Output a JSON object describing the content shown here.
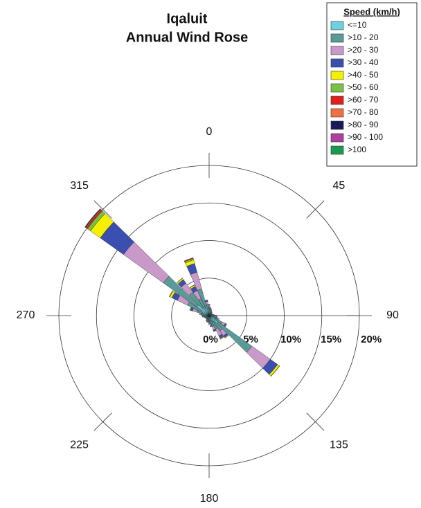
{
  "chart_data": {
    "type": "windrose",
    "title": "Iqaluit",
    "subtitle": "Annual Wind Rose",
    "legend_title": "Speed (km/h)",
    "directions": [
      0,
      10,
      20,
      30,
      40,
      50,
      60,
      70,
      80,
      90,
      100,
      110,
      120,
      130,
      140,
      150,
      160,
      170,
      180,
      190,
      200,
      210,
      220,
      230,
      240,
      250,
      260,
      270,
      280,
      290,
      300,
      310,
      320,
      330,
      340,
      350
    ],
    "angle_ticks": [
      0,
      45,
      90,
      135,
      180,
      225,
      270,
      315
    ],
    "rlim": [
      0,
      20
    ],
    "rticks": [
      {
        "value": 0,
        "label": "0%"
      },
      {
        "value": 5,
        "label": "5%"
      },
      {
        "value": 10,
        "label": "10%"
      },
      {
        "value": 15,
        "label": "15%"
      },
      {
        "value": 20,
        "label": "20%"
      }
    ],
    "series": [
      {
        "name": "<=10",
        "color": "#6fd0e0",
        "values": [
          0.8,
          0.7,
          0.6,
          0.5,
          0.4,
          0.4,
          0.4,
          0.4,
          0.5,
          0.6,
          0.6,
          0.7,
          0.9,
          1.5,
          1.0,
          0.8,
          0.7,
          0.6,
          0.6,
          0.5,
          0.5,
          0.5,
          0.4,
          0.4,
          0.4,
          0.5,
          0.5,
          0.6,
          0.7,
          0.9,
          1.2,
          2,
          1.3,
          1.0,
          1.2,
          0.9
        ]
      },
      {
        "name": ">10 - 20",
        "color": "#5a9a98",
        "values": [
          0.4,
          0.3,
          0.2,
          0.2,
          0.2,
          0.1,
          0.1,
          0.1,
          0.2,
          0.3,
          0.4,
          0.5,
          1.0,
          5.5,
          1.5,
          1.2,
          0.8,
          0.5,
          0.4,
          0.3,
          0.3,
          0.2,
          0.2,
          0.2,
          0.2,
          0.2,
          0.3,
          0.3,
          0.4,
          0.8,
          2.0,
          5.5,
          2.5,
          1.5,
          2.5,
          0.6
        ]
      },
      {
        "name": ">20 - 30",
        "color": "#c99ac9",
        "values": [
          0.2,
          0.1,
          0.1,
          0,
          0,
          0,
          0,
          0,
          0,
          0.1,
          0.1,
          0.2,
          0.5,
          3.0,
          0.8,
          1.0,
          0.5,
          0.3,
          0.2,
          0.1,
          0.1,
          0.1,
          0,
          0,
          0,
          0,
          0.1,
          0.1,
          0.2,
          0.6,
          1.5,
          6.5,
          1.5,
          1.2,
          2.3,
          0.4
        ]
      },
      {
        "name": ">30 - 40",
        "color": "#3a4fb0",
        "values": [
          0.1,
          0,
          0,
          0,
          0,
          0,
          0,
          0,
          0,
          0,
          0,
          0,
          0.2,
          1.2,
          0.3,
          0.4,
          0.2,
          0.1,
          0,
          0,
          0,
          0,
          0,
          0,
          0,
          0,
          0,
          0,
          0,
          0.3,
          0.8,
          3.8,
          0.6,
          0.6,
          1.2,
          0.2
        ]
      },
      {
        "name": ">40 - 50",
        "color": "#f4f000",
        "values": [
          0,
          0,
          0,
          0,
          0,
          0,
          0,
          0,
          0,
          0,
          0,
          0,
          0,
          0.3,
          0.1,
          0.1,
          0,
          0,
          0,
          0,
          0,
          0,
          0,
          0,
          0,
          0,
          0,
          0,
          0,
          0.1,
          0.3,
          1.6,
          0.2,
          0.2,
          0.5,
          0
        ]
      },
      {
        "name": ">50 - 60",
        "color": "#7ac143",
        "values": [
          0,
          0,
          0,
          0,
          0,
          0,
          0,
          0,
          0,
          0,
          0,
          0,
          0,
          0.05,
          0,
          0,
          0,
          0,
          0,
          0,
          0,
          0,
          0,
          0,
          0,
          0,
          0,
          0,
          0,
          0,
          0.1,
          0.5,
          0.05,
          0.05,
          0.2,
          0
        ]
      },
      {
        "name": ">60 - 70",
        "color": "#e0201c",
        "values": [
          0,
          0,
          0,
          0,
          0,
          0,
          0,
          0,
          0,
          0,
          0,
          0,
          0,
          0,
          0,
          0,
          0,
          0,
          0,
          0,
          0,
          0,
          0,
          0,
          0,
          0,
          0,
          0,
          0,
          0,
          0,
          0.2,
          0,
          0,
          0.1,
          0
        ]
      },
      {
        "name": ">70 - 80",
        "color": "#f07040",
        "values": [
          0,
          0,
          0,
          0,
          0,
          0,
          0,
          0,
          0,
          0,
          0,
          0,
          0,
          0,
          0,
          0,
          0,
          0,
          0,
          0,
          0,
          0,
          0,
          0,
          0,
          0,
          0,
          0,
          0,
          0,
          0,
          0.1,
          0,
          0,
          0,
          0
        ]
      },
      {
        "name": ">80 - 90",
        "color": "#1a1a5a",
        "values": [
          0,
          0,
          0,
          0,
          0,
          0,
          0,
          0,
          0,
          0,
          0,
          0,
          0,
          0,
          0,
          0,
          0,
          0,
          0,
          0,
          0,
          0,
          0,
          0,
          0,
          0,
          0,
          0,
          0,
          0,
          0,
          0.05,
          0,
          0,
          0,
          0
        ]
      },
      {
        "name": ">90 - 100",
        "color": "#b040a0",
        "values": [
          0,
          0,
          0,
          0,
          0,
          0,
          0,
          0,
          0,
          0,
          0,
          0,
          0,
          0,
          0,
          0,
          0,
          0,
          0,
          0,
          0,
          0,
          0,
          0,
          0,
          0,
          0,
          0,
          0,
          0,
          0,
          0.05,
          0,
          0,
          0,
          0
        ]
      },
      {
        "name": ">100",
        "color": "#1a9a50",
        "values": [
          0,
          0,
          0,
          0,
          0,
          0,
          0,
          0,
          0,
          0,
          0,
          0,
          0,
          0,
          0,
          0,
          0,
          0,
          0,
          0,
          0,
          0,
          0,
          0,
          0,
          0,
          0,
          0,
          0,
          0,
          0,
          0.02,
          0,
          0,
          0,
          0
        ]
      }
    ]
  }
}
